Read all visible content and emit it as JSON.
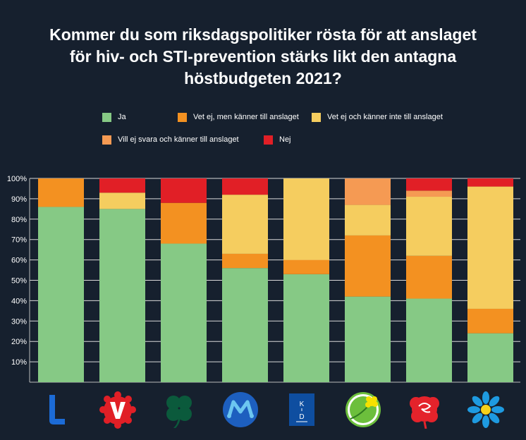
{
  "title_lines": [
    "Kommer du som riksdagspolitiker rösta för att anslaget",
    "för hiv- och STI-prevention stärks likt den antagna",
    "höstbudgeten 2021?"
  ],
  "colors": {
    "background": "#16202e",
    "gridline": "#d8d8d8",
    "axis": "#bbbbbb"
  },
  "logos": [
    {
      "icon": "liberalerna-logo-icon",
      "letter": "L"
    },
    {
      "icon": "vansterpartiet-logo-icon",
      "letter": "V"
    },
    {
      "icon": "centerpartiet-clover-logo-icon"
    },
    {
      "icon": "moderaterna-logo-icon",
      "letter": "M"
    },
    {
      "icon": "kristdemokraterna-logo-icon",
      "letter": "KD"
    },
    {
      "icon": "miljopartiet-dandelion-logo-icon"
    },
    {
      "icon": "socialdemokraterna-rose-logo-icon"
    },
    {
      "icon": "sverigedemokraterna-flower-logo-icon"
    }
  ],
  "chart_data": {
    "type": "bar",
    "stacked": true,
    "orientation": "vertical",
    "title": "Kommer du som riksdagspolitiker rösta för att anslaget för hiv- och STI-prevention stärks likt den antagna höstbudgeten 2021?",
    "categories": [
      "L",
      "V",
      "C",
      "M",
      "KD",
      "MP",
      "S",
      "SD"
    ],
    "ylim": [
      0,
      100
    ],
    "yticks": [
      10,
      20,
      30,
      40,
      50,
      60,
      70,
      80,
      90,
      100
    ],
    "ytick_labels": [
      "10%",
      "20%",
      "30%",
      "40%",
      "50%",
      "60%",
      "70%",
      "80%",
      "90%",
      "100%"
    ],
    "grid": true,
    "legend_position": "top",
    "series": [
      {
        "name": "Ja",
        "color": "#86c985",
        "values": [
          86,
          85,
          68,
          56,
          53,
          42,
          41,
          24
        ]
      },
      {
        "name": "Vet ej, men känner till anslaget",
        "color": "#f39121",
        "values": [
          14,
          0,
          20,
          7,
          7,
          30,
          21,
          12
        ]
      },
      {
        "name": "Vet ej och känner inte till anslaget",
        "color": "#f5cd5f",
        "values": [
          0,
          8,
          0,
          29,
          40,
          15,
          29,
          60
        ]
      },
      {
        "name": "Vill ej svara och känner till anslaget",
        "color": "#f59a53",
        "values": [
          0,
          0,
          0,
          0,
          0,
          13,
          3,
          0
        ]
      },
      {
        "name": "Nej",
        "color": "#e11f26",
        "values": [
          0,
          7,
          12,
          8,
          0,
          0,
          6,
          4
        ]
      }
    ]
  }
}
